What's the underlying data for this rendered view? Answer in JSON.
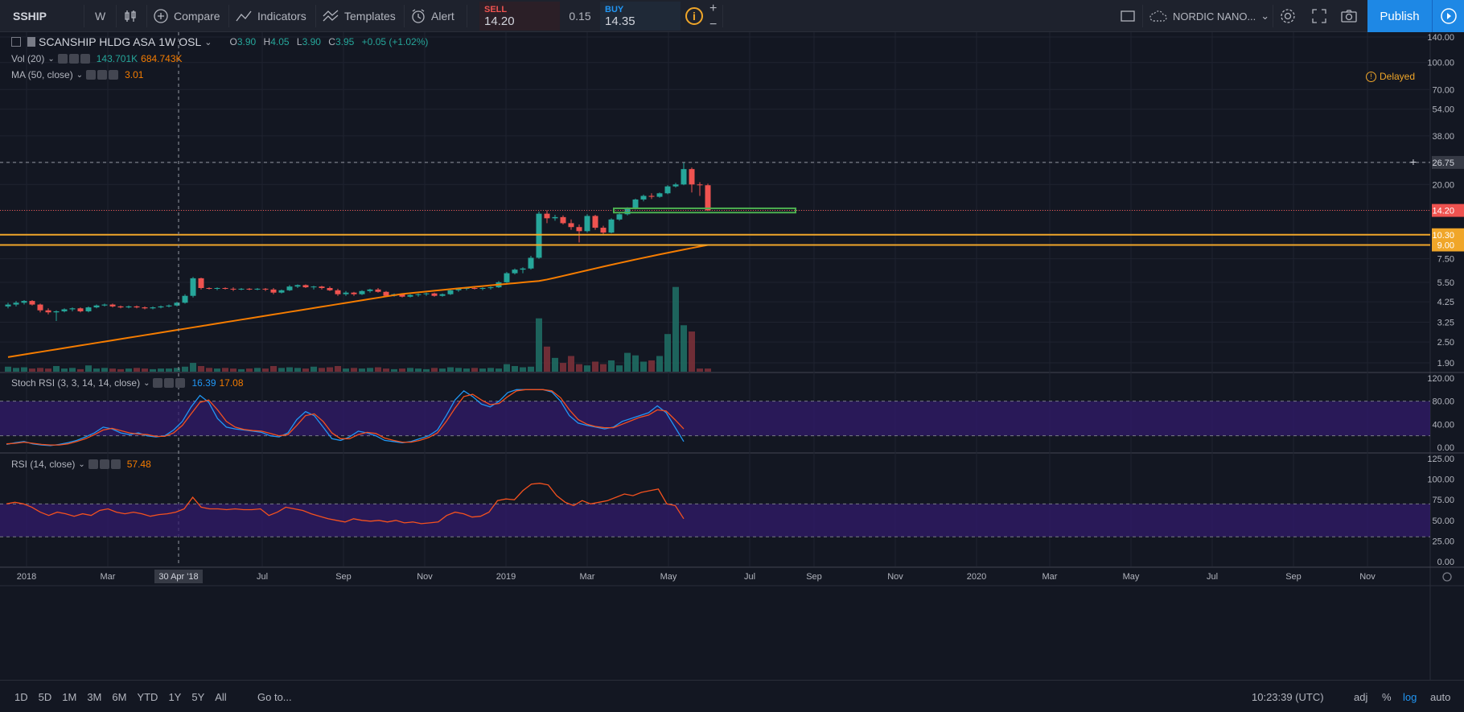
{
  "toolbar": {
    "symbol": "SSHIP",
    "interval": "W",
    "compare": "Compare",
    "indicators": "Indicators",
    "templates": "Templates",
    "alert": "Alert",
    "sell_label": "SELL",
    "sell_price": "14.20",
    "spread": "0.15",
    "buy_label": "BUY",
    "buy_price": "14.35",
    "info": "i",
    "broker": "NORDIC NANO...",
    "publish": "Publish",
    "plus": "+",
    "minus": "−"
  },
  "legend": {
    "title": "SCANSHIP HLDG ASA",
    "interval": "1W",
    "exchange": "OSL",
    "o_label": "O",
    "o": "3.90",
    "h_label": "H",
    "h": "4.05",
    "l_label": "L",
    "l": "3.90",
    "c_label": "C",
    "c": "3.95",
    "change": "+0.05 (+1.02%)",
    "vol_label": "Vol (20)",
    "vol_value": "143.701K",
    "vol_ma": "684.743K",
    "ma_label": "MA (50, close)",
    "ma_value": "3.01",
    "delayed": "Delayed"
  },
  "stoch": {
    "label": "Stoch RSI (3, 3, 14, 14, close)",
    "k": "16.39",
    "d": "17.08"
  },
  "rsi": {
    "label": "RSI (14, close)",
    "value": "57.48"
  },
  "price_axis": [
    "140.00",
    "100.00",
    "70.00",
    "54.00",
    "38.00",
    "26.75",
    "20.00",
    "14.20",
    "10.30",
    "9.00",
    "7.50",
    "5.50",
    "4.25",
    "3.25",
    "2.50",
    "1.90"
  ],
  "price_tags": {
    "crosshair": "26.75",
    "last": "14.20",
    "line1": "10.30",
    "line2": "9.00"
  },
  "stoch_axis": [
    "120.00",
    "80.00",
    "40.00",
    "0.00"
  ],
  "rsi_axis": [
    "125.00",
    "100.00",
    "75.00",
    "50.00",
    "25.00",
    "0.00"
  ],
  "time_axis": [
    "2018",
    "Mar",
    "Jul",
    "Sep",
    "Nov",
    "2019",
    "Mar",
    "May",
    "Jul",
    "Sep",
    "Nov",
    "2020",
    "Mar",
    "May",
    "Jul",
    "Sep",
    "Nov"
  ],
  "crosshair_date": "30 Apr '18",
  "bottom": {
    "ranges": [
      "1D",
      "5D",
      "1M",
      "3M",
      "6M",
      "YTD",
      "1Y",
      "5Y",
      "All"
    ],
    "goto": "Go to...",
    "time": "10:23:39 (UTC)",
    "adj": "adj",
    "pct": "%",
    "log": "log",
    "auto": "auto"
  },
  "colors": {
    "up": "#26a69a",
    "down": "#ef5350",
    "ma": "#f57c00",
    "stoch_k": "#2196f3",
    "stoch_d": "#f4511e",
    "band": "#311b6b",
    "hline": "#f0a629",
    "box": "#4caf50",
    "accent": "#1e88e5"
  },
  "icons": [
    "candles-icon",
    "compare-icon",
    "indicators-icon",
    "templates-icon",
    "alert-icon",
    "info-icon",
    "rectangle-icon",
    "cloud-icon",
    "gear-icon",
    "fullscreen-icon",
    "camera-icon",
    "play-icon",
    "settings-icon"
  ]
}
